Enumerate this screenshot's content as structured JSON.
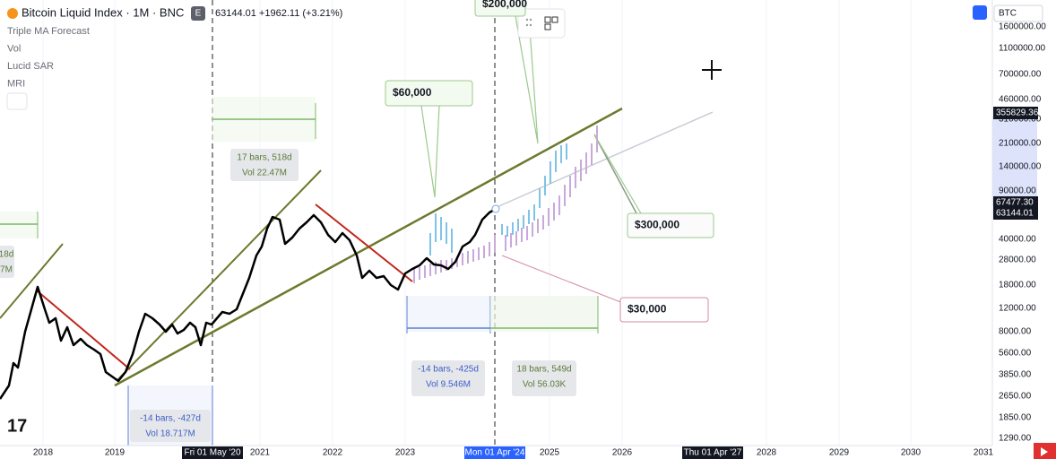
{
  "header": {
    "symbol": "Bitcoin Liquid Index · 1M · BNC",
    "badge": "E",
    "quote": "63144.01 +1962.11 (+3.21%)"
  },
  "indicators": [
    "Triple MA Forecast",
    "Vol",
    "Lucid SAR",
    "MRI"
  ],
  "price_axis": {
    "symbol": "BTC",
    "labels": [
      "1600000.00",
      "1100000.00",
      "700000.00",
      "460000.00",
      "310000.00",
      "210000.00",
      "140000.00",
      "90000.00",
      "40000.00",
      "28000.00",
      "18000.00",
      "12000.00",
      "8000.00",
      "5600.00",
      "3850.00",
      "2650.00",
      "1850.00",
      "1290.00"
    ],
    "markers": [
      "355829.36",
      "67477.30",
      "63144.01"
    ]
  },
  "time_axis": {
    "labels": [
      "2018",
      "2019",
      "2021",
      "2022",
      "2023",
      "2025",
      "2026",
      "2028",
      "2029",
      "2030",
      "2031"
    ],
    "markers": [
      "Fri 01 May '20",
      "Mon 01 Apr '24",
      "Thu 01 Apr '27"
    ]
  },
  "callouts": [
    "$60,000",
    "$200,000",
    "$300,000",
    "$30,000"
  ],
  "measures": [
    [
      "17 bars, 518d",
      "Vol 22.47M"
    ],
    [
      "-14 bars, -427d",
      "Vol 18.717M"
    ],
    [
      "-14 bars, -425d",
      "Vol 9.546M"
    ],
    [
      "18 bars, 549d",
      "Vol 56.03K"
    ],
    [
      "18d",
      "7M"
    ]
  ]
}
